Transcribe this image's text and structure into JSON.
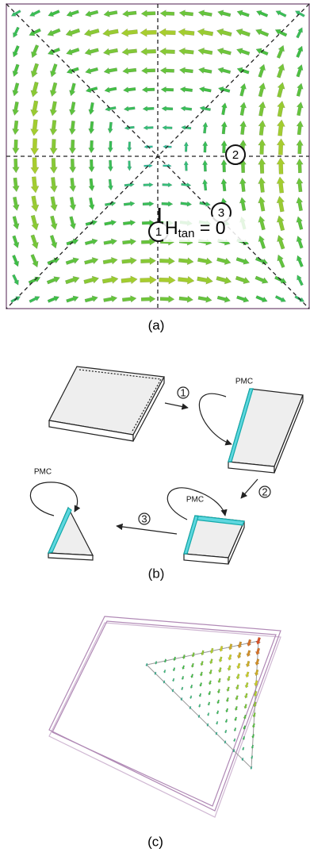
{
  "panel_a": {
    "markers": [
      "1",
      "2",
      "3"
    ],
    "annotation": {
      "main": "H",
      "sub": "tan",
      "rest": " = 0"
    },
    "caption": "(a)"
  },
  "panel_b": {
    "steps": [
      "1",
      "2",
      "3"
    ],
    "labels": [
      "PMC",
      "PMC",
      "PMC"
    ],
    "caption": "(b)"
  },
  "panel_c": {
    "caption": "(c)"
  }
}
